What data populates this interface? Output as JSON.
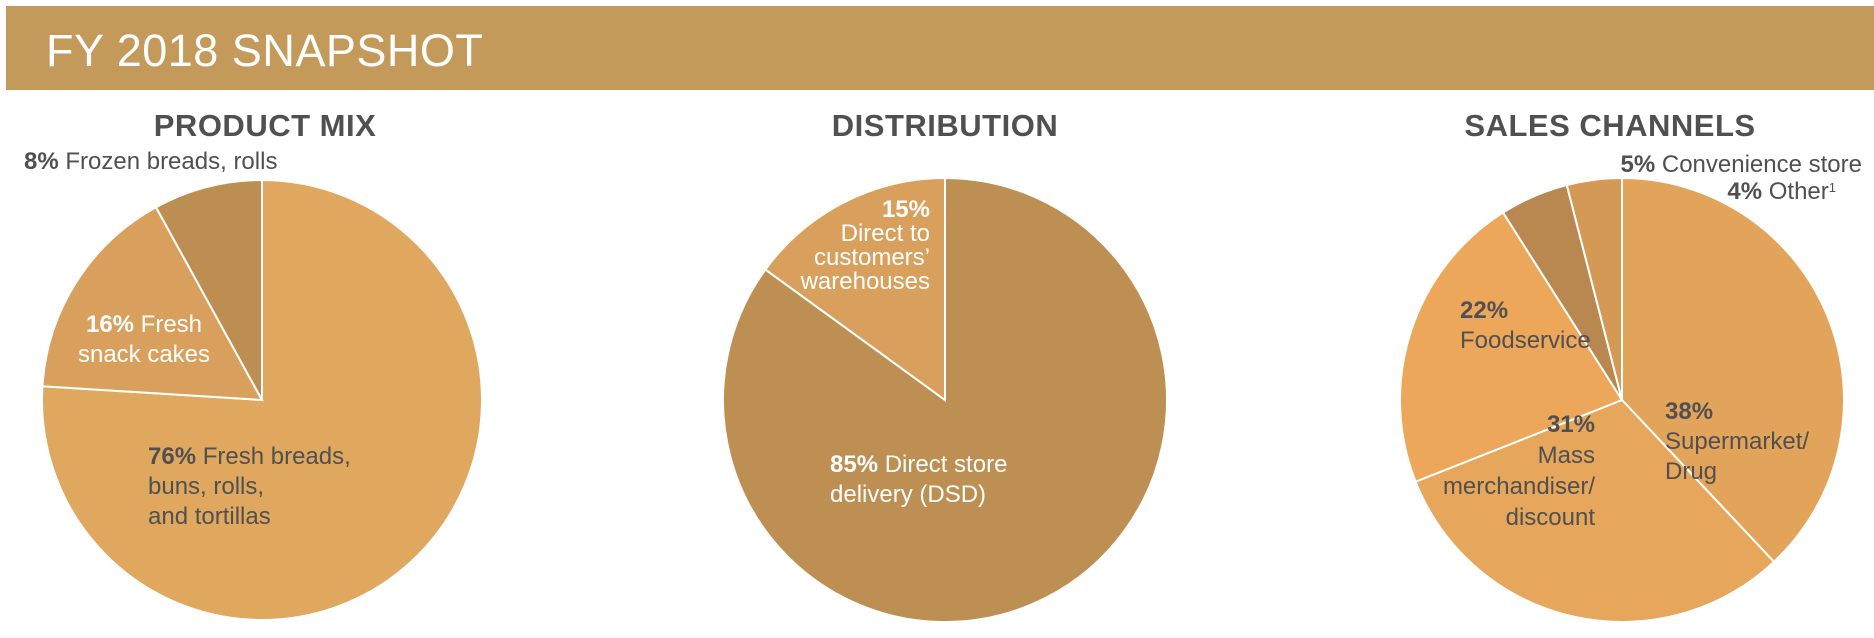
{
  "header": {
    "title": "FY 2018 SNAPSHOT"
  },
  "colors": {
    "banner": "#c49a5a",
    "title_text": "#505050"
  },
  "chart_data": [
    {
      "type": "pie",
      "title": "PRODUCT MIX",
      "slices": [
        {
          "value": 76,
          "pct": "76%",
          "line1": " Fresh breads,",
          "line2": "buns, rolls,",
          "line3": "and tortillas",
          "color": "#e0a75f"
        },
        {
          "value": 16,
          "pct": "16%",
          "line1": " Fresh",
          "line2": "snack cakes",
          "color": "#d8a05c"
        },
        {
          "value": 8,
          "pct": "8%",
          "line1": " Frozen breads, rolls",
          "color": "#bd8e52"
        }
      ]
    },
    {
      "type": "pie",
      "title": "DISTRIBUTION",
      "slices": [
        {
          "value": 85,
          "pct": "85%",
          "line1": " Direct store",
          "line2": "delivery (DSD)",
          "color": "#be8f53"
        },
        {
          "value": 15,
          "pct": "15%",
          "line1": "Direct to",
          "line2": "customers’",
          "line3": "warehouses",
          "color": "#d8a05c"
        }
      ]
    },
    {
      "type": "pie",
      "title": "SALES CHANNELS",
      "slices": [
        {
          "value": 38,
          "pct": "38%",
          "line1": "Supermarket/",
          "line2": "Drug",
          "color": "#e2a45a"
        },
        {
          "value": 31,
          "pct": "31%",
          "line1": "Mass",
          "line2": "merchandiser/",
          "line3": "discount",
          "color": "#e6a65b"
        },
        {
          "value": 22,
          "pct": "22%",
          "line1": "Foodservice",
          "color": "#eda75b"
        },
        {
          "value": 5,
          "pct": "5%",
          "line1": " Convenience store",
          "color": "#b98850"
        },
        {
          "value": 4,
          "pct": "4%",
          "line1": " Other",
          "footnote": "1",
          "color": "#d49a55"
        }
      ]
    }
  ]
}
